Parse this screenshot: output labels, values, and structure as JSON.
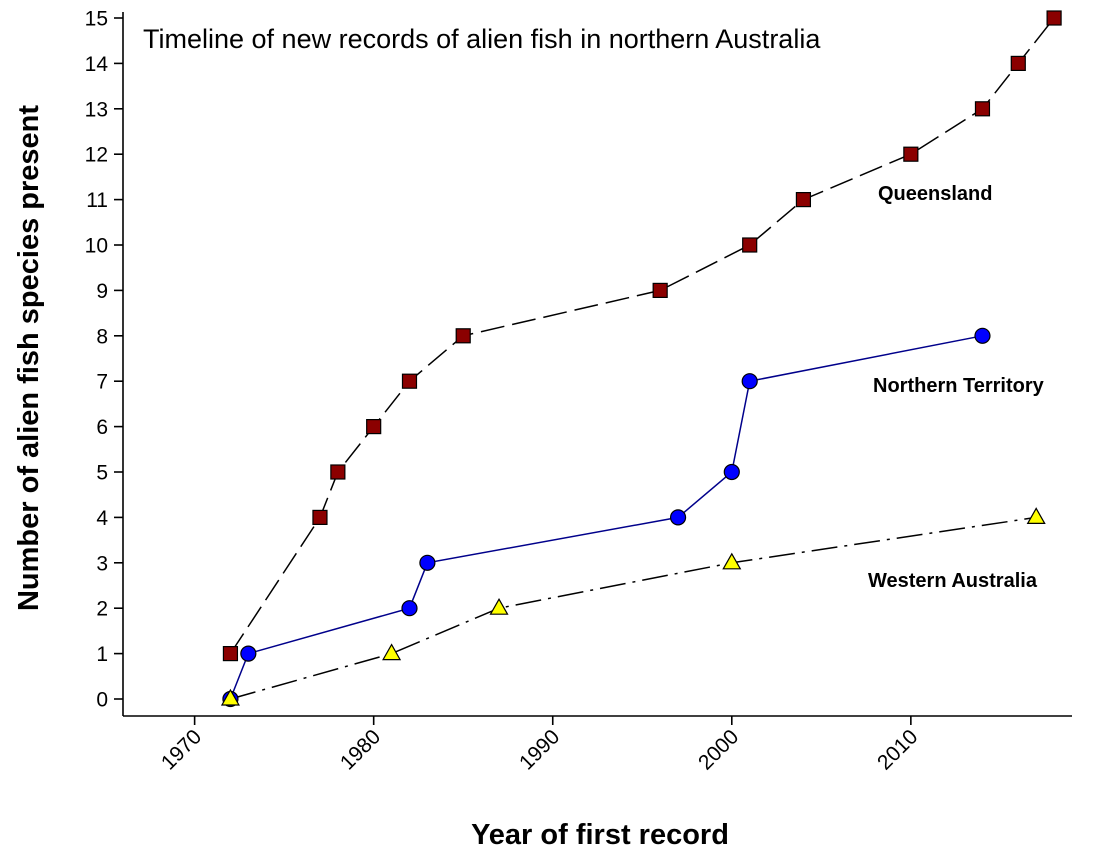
{
  "chart_data": {
    "type": "line",
    "title": "Timeline of new records of alien fish in northern Australia",
    "xlabel": "Year of first record",
    "ylabel": "Number of alien fish species present",
    "xlim": [
      1966,
      2019
    ],
    "ylim": [
      0,
      15
    ],
    "x_ticks": [
      1970,
      1980,
      1990,
      2000,
      2010
    ],
    "y_ticks": [
      0,
      1,
      2,
      3,
      4,
      5,
      6,
      7,
      8,
      9,
      10,
      11,
      12,
      13,
      14,
      15
    ],
    "grid": false,
    "legend": "none",
    "series": [
      {
        "name": "Queensland",
        "line_style": "dashed",
        "line_color": "#000000",
        "marker": "square",
        "marker_color": "#8b0000",
        "points": [
          {
            "x": 1972,
            "y": 1
          },
          {
            "x": 1977,
            "y": 4
          },
          {
            "x": 1978,
            "y": 5
          },
          {
            "x": 1980,
            "y": 6
          },
          {
            "x": 1982,
            "y": 7
          },
          {
            "x": 1985,
            "y": 8
          },
          {
            "x": 1996,
            "y": 9
          },
          {
            "x": 2001,
            "y": 10
          },
          {
            "x": 2004,
            "y": 11
          },
          {
            "x": 2010,
            "y": 12
          },
          {
            "x": 2014,
            "y": 13
          },
          {
            "x": 2016,
            "y": 14
          },
          {
            "x": 2018,
            "y": 15
          }
        ]
      },
      {
        "name": "Northern Territory",
        "line_style": "solid",
        "line_color": "#00008b",
        "marker": "circle",
        "marker_color": "#0000ff",
        "points": [
          {
            "x": 1972,
            "y": 0
          },
          {
            "x": 1973,
            "y": 1
          },
          {
            "x": 1982,
            "y": 2
          },
          {
            "x": 1983,
            "y": 3
          },
          {
            "x": 1997,
            "y": 4
          },
          {
            "x": 2000,
            "y": 5
          },
          {
            "x": 2001,
            "y": 7
          },
          {
            "x": 2014,
            "y": 8
          }
        ]
      },
      {
        "name": "Western Australia",
        "line_style": "dash-dot",
        "line_color": "#000000",
        "marker": "triangle",
        "marker_color": "#ffff00",
        "points": [
          {
            "x": 1972,
            "y": 0
          },
          {
            "x": 1981,
            "y": 1
          },
          {
            "x": 1987,
            "y": 2
          },
          {
            "x": 2000,
            "y": 3
          },
          {
            "x": 2017,
            "y": 4
          }
        ]
      }
    ]
  }
}
